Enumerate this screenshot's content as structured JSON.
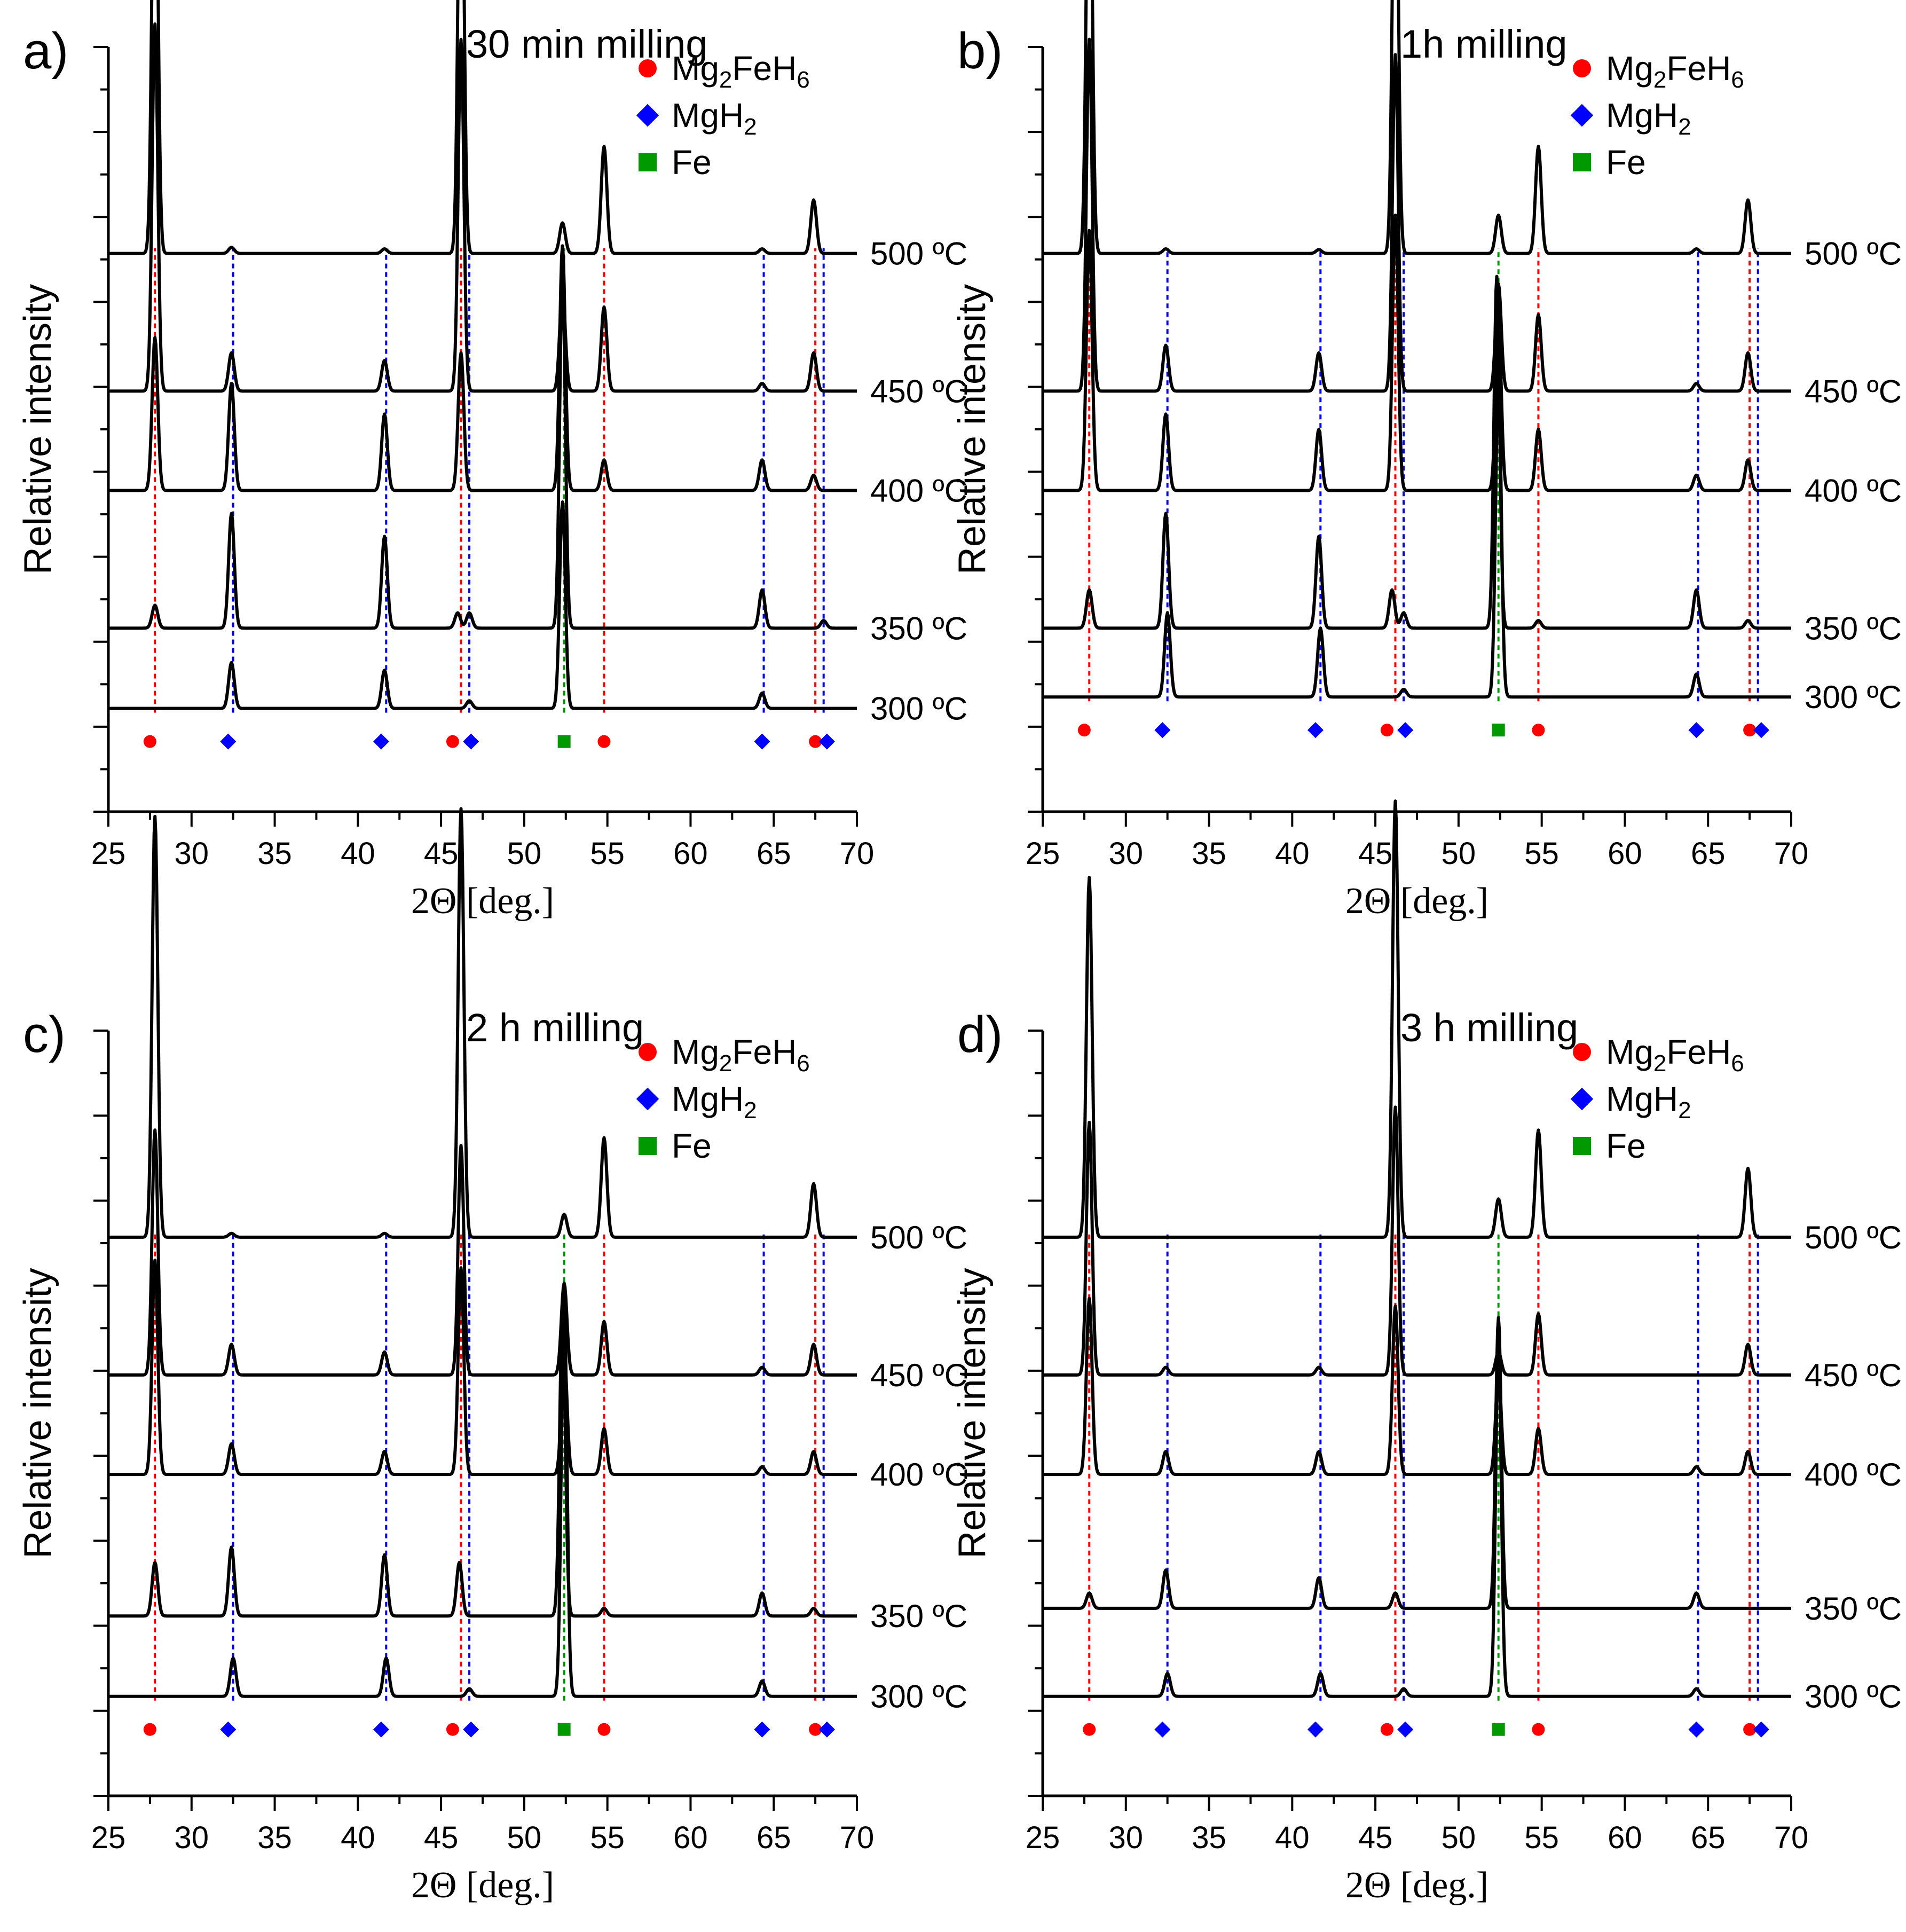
{
  "chart_data": [
    {
      "type": "line",
      "panel_label": "a)",
      "title": "30 min milling",
      "xlabel": "2Θ [deg.]",
      "ylabel": "Relative intensity",
      "xlim": [
        25,
        70
      ],
      "xticks": [
        25,
        30,
        35,
        40,
        45,
        50,
        55,
        60,
        65,
        70
      ],
      "legend": [
        {
          "formula": [
            "Mg",
            "2",
            "FeH",
            "6"
          ],
          "marker": "circle",
          "color": "#ff0000"
        },
        {
          "formula": [
            "MgH",
            "2"
          ],
          "marker": "diamond",
          "color": "#0000ff"
        },
        {
          "formula": [
            "Fe"
          ],
          "marker": "square",
          "color": "#009900"
        }
      ],
      "series": [
        {
          "name": "500 °C",
          "label": "500 ºC",
          "baseline": 0.73,
          "peaks": [
            [
              27.8,
              0.64
            ],
            [
              32.4,
              0.008
            ],
            [
              41.6,
              0.006
            ],
            [
              46.2,
              0.63
            ],
            [
              52.3,
              0.04
            ],
            [
              54.8,
              0.14
            ],
            [
              64.3,
              0.006
            ],
            [
              67.4,
              0.07
            ]
          ]
        },
        {
          "name": "450 °C",
          "label": "450 ºC",
          "baseline": 0.55,
          "peaks": [
            [
              27.8,
              0.48
            ],
            [
              32.4,
              0.05
            ],
            [
              41.6,
              0.04
            ],
            [
              46.2,
              0.46
            ],
            [
              52.3,
              0.13
            ],
            [
              54.8,
              0.11
            ],
            [
              64.3,
              0.01
            ],
            [
              67.4,
              0.05
            ]
          ]
        },
        {
          "name": "400 °C",
          "label": "400 ºC",
          "baseline": 0.42,
          "peaks": [
            [
              27.8,
              0.2
            ],
            [
              32.4,
              0.14
            ],
            [
              41.6,
              0.1
            ],
            [
              46.2,
              0.18
            ],
            [
              52.3,
              0.32
            ],
            [
              54.8,
              0.04
            ],
            [
              64.3,
              0.04
            ],
            [
              67.4,
              0.02
            ]
          ]
        },
        {
          "name": "350 °C",
          "label": "350 ºC",
          "baseline": 0.24,
          "peaks": [
            [
              27.8,
              0.03
            ],
            [
              32.4,
              0.15
            ],
            [
              41.6,
              0.12
            ],
            [
              46.0,
              0.02
            ],
            [
              46.7,
              0.02
            ],
            [
              52.3,
              0.46
            ],
            [
              64.3,
              0.05
            ],
            [
              68.0,
              0.01
            ]
          ]
        },
        {
          "name": "300 °C",
          "label": "300 ºC",
          "baseline": 0.135,
          "peaks": [
            [
              32.4,
              0.06
            ],
            [
              41.6,
              0.05
            ],
            [
              46.7,
              0.01
            ],
            [
              52.3,
              0.27
            ],
            [
              64.3,
              0.02
            ]
          ]
        }
      ],
      "ref_markers": {
        "Mg2FeH6": [
          27.5,
          45.7,
          54.8,
          67.5
        ],
        "MgH2": [
          32.2,
          41.4,
          46.8,
          64.3,
          68.2
        ],
        "Fe": [
          52.4
        ]
      },
      "ref_lines": {
        "Mg2FeH6": [
          27.8,
          46.2,
          54.8,
          67.5
        ],
        "MgH2": [
          32.5,
          41.7,
          46.7,
          64.4,
          68.0
        ],
        "Fe": [
          52.4
        ]
      }
    },
    {
      "type": "line",
      "panel_label": "b)",
      "title": "1h milling",
      "xlabel": "2Θ [deg.]",
      "ylabel": "Relative intensity",
      "xlim": [
        25,
        70
      ],
      "xticks": [
        25,
        30,
        35,
        40,
        45,
        50,
        55,
        60,
        65,
        70
      ],
      "legend": [
        {
          "formula": [
            "Mg",
            "2",
            "FeH",
            "6"
          ],
          "marker": "circle",
          "color": "#ff0000"
        },
        {
          "formula": [
            "MgH",
            "2"
          ],
          "marker": "diamond",
          "color": "#0000ff"
        },
        {
          "formula": [
            "Fe"
          ],
          "marker": "square",
          "color": "#009900"
        }
      ],
      "series": [
        {
          "name": "500 °C",
          "label": "500 ºC",
          "baseline": 0.73,
          "peaks": [
            [
              27.8,
              0.63
            ],
            [
              32.4,
              0.006
            ],
            [
              41.6,
              0.005
            ],
            [
              46.2,
              0.62
            ],
            [
              52.4,
              0.05
            ],
            [
              54.8,
              0.14
            ],
            [
              64.3,
              0.006
            ],
            [
              67.4,
              0.07
            ]
          ]
        },
        {
          "name": "450 °C",
          "label": "450 ºC",
          "baseline": 0.55,
          "peaks": [
            [
              27.8,
              0.46
            ],
            [
              32.4,
              0.06
            ],
            [
              41.6,
              0.05
            ],
            [
              46.2,
              0.44
            ],
            [
              52.4,
              0.14
            ],
            [
              54.8,
              0.1
            ],
            [
              64.3,
              0.01
            ],
            [
              67.4,
              0.05
            ]
          ]
        },
        {
          "name": "400 °C",
          "label": "400 ºC",
          "baseline": 0.42,
          "peaks": [
            [
              27.8,
              0.34
            ],
            [
              32.4,
              0.1
            ],
            [
              41.6,
              0.08
            ],
            [
              46.2,
              0.36
            ],
            [
              52.4,
              0.22
            ],
            [
              54.8,
              0.08
            ],
            [
              64.3,
              0.02
            ],
            [
              67.4,
              0.04
            ]
          ]
        },
        {
          "name": "350 °C",
          "label": "350 ºC",
          "baseline": 0.24,
          "peaks": [
            [
              27.8,
              0.05
            ],
            [
              32.4,
              0.15
            ],
            [
              41.6,
              0.12
            ],
            [
              46.0,
              0.05
            ],
            [
              46.7,
              0.02
            ],
            [
              52.3,
              0.46
            ],
            [
              54.8,
              0.01
            ],
            [
              64.3,
              0.05
            ],
            [
              67.4,
              0.01
            ]
          ]
        },
        {
          "name": "300 °C",
          "label": "300 ºC",
          "baseline": 0.15,
          "peaks": [
            [
              32.5,
              0.11
            ],
            [
              41.7,
              0.09
            ],
            [
              46.7,
              0.01
            ],
            [
              52.4,
              0.42
            ],
            [
              64.3,
              0.03
            ]
          ]
        }
      ],
      "ref_markers": {
        "Mg2FeH6": [
          27.5,
          45.7,
          54.8,
          67.5
        ],
        "MgH2": [
          32.2,
          41.4,
          46.8,
          64.3,
          68.2
        ],
        "Fe": [
          52.4
        ]
      },
      "ref_lines": {
        "Mg2FeH6": [
          27.8,
          46.2,
          54.8,
          67.5
        ],
        "MgH2": [
          32.5,
          41.7,
          46.7,
          64.4,
          68.0
        ],
        "Fe": [
          52.4
        ]
      }
    },
    {
      "type": "line",
      "panel_label": "c)",
      "title": "2 h milling",
      "xlabel": "2Θ [deg.]",
      "ylabel": "Relative intensity",
      "xlim": [
        25,
        70
      ],
      "xticks": [
        25,
        30,
        35,
        40,
        45,
        50,
        55,
        60,
        65,
        70
      ],
      "legend": [
        {
          "formula": [
            "Mg",
            "2",
            "FeH",
            "6"
          ],
          "marker": "circle",
          "color": "#ff0000"
        },
        {
          "formula": [
            "MgH",
            "2"
          ],
          "marker": "diamond",
          "color": "#0000ff"
        },
        {
          "formula": [
            "Fe"
          ],
          "marker": "square",
          "color": "#009900"
        }
      ],
      "series": [
        {
          "name": "500 °C",
          "label": "500 ºC",
          "baseline": 0.73,
          "peaks": [
            [
              27.8,
              0.55
            ],
            [
              32.4,
              0.005
            ],
            [
              41.6,
              0.005
            ],
            [
              46.2,
              0.56
            ],
            [
              52.4,
              0.03
            ],
            [
              54.8,
              0.13
            ],
            [
              67.4,
              0.07
            ]
          ]
        },
        {
          "name": "450 °C",
          "label": "450 ºC",
          "baseline": 0.55,
          "peaks": [
            [
              27.8,
              0.32
            ],
            [
              32.4,
              0.04
            ],
            [
              41.6,
              0.03
            ],
            [
              46.2,
              0.3
            ],
            [
              52.4,
              0.12
            ],
            [
              54.8,
              0.07
            ],
            [
              64.3,
              0.01
            ],
            [
              67.4,
              0.04
            ]
          ]
        },
        {
          "name": "400 °C",
          "label": "400 ºC",
          "baseline": 0.42,
          "peaks": [
            [
              27.8,
              0.28
            ],
            [
              32.4,
              0.04
            ],
            [
              41.6,
              0.03
            ],
            [
              46.2,
              0.27
            ],
            [
              52.4,
              0.16
            ],
            [
              54.8,
              0.06
            ],
            [
              64.3,
              0.01
            ],
            [
              67.4,
              0.03
            ]
          ]
        },
        {
          "name": "350 °C",
          "label": "350 ºC",
          "baseline": 0.235,
          "peaks": [
            [
              27.8,
              0.07
            ],
            [
              32.4,
              0.09
            ],
            [
              41.6,
              0.08
            ],
            [
              46.1,
              0.07
            ],
            [
              52.3,
              0.4
            ],
            [
              54.8,
              0.01
            ],
            [
              64.3,
              0.03
            ],
            [
              67.4,
              0.01
            ]
          ]
        },
        {
          "name": "300 °C",
          "label": "300 ºC",
          "baseline": 0.13,
          "peaks": [
            [
              32.5,
              0.05
            ],
            [
              41.7,
              0.05
            ],
            [
              46.7,
              0.01
            ],
            [
              52.4,
              0.52
            ],
            [
              64.3,
              0.02
            ]
          ]
        }
      ],
      "ref_markers": {
        "Mg2FeH6": [
          27.5,
          45.7,
          54.8,
          67.5
        ],
        "MgH2": [
          32.2,
          41.4,
          46.8,
          64.3,
          68.2
        ],
        "Fe": [
          52.4
        ]
      },
      "ref_lines": {
        "Mg2FeH6": [
          27.8,
          46.2,
          54.8,
          67.5
        ],
        "MgH2": [
          32.5,
          41.7,
          46.7,
          64.4,
          68.0
        ],
        "Fe": [
          52.4
        ]
      }
    },
    {
      "type": "line",
      "panel_label": "d)",
      "title": "3 h milling",
      "xlabel": "2Θ [deg.]",
      "ylabel": "Relative intensity",
      "xlim": [
        25,
        70
      ],
      "xticks": [
        25,
        30,
        35,
        40,
        45,
        50,
        55,
        60,
        65,
        70
      ],
      "legend": [
        {
          "formula": [
            "Mg",
            "2",
            "FeH",
            "6"
          ],
          "marker": "circle",
          "color": "#ff0000"
        },
        {
          "formula": [
            "MgH",
            "2"
          ],
          "marker": "diamond",
          "color": "#0000ff"
        },
        {
          "formula": [
            "Fe"
          ],
          "marker": "square",
          "color": "#009900"
        }
      ],
      "series": [
        {
          "name": "500 °C",
          "label": "500 ºC",
          "baseline": 0.73,
          "peaks": [
            [
              27.8,
              0.47
            ],
            [
              46.2,
              0.57
            ],
            [
              52.4,
              0.05
            ],
            [
              54.8,
              0.14
            ],
            [
              67.4,
              0.09
            ]
          ]
        },
        {
          "name": "450 °C",
          "label": "450 ºC",
          "baseline": 0.55,
          "peaks": [
            [
              27.8,
              0.33
            ],
            [
              32.4,
              0.01
            ],
            [
              41.6,
              0.01
            ],
            [
              46.2,
              0.35
            ],
            [
              52.4,
              0.03
            ],
            [
              54.8,
              0.08
            ],
            [
              67.4,
              0.04
            ]
          ]
        },
        {
          "name": "400 °C",
          "label": "400 ºC",
          "baseline": 0.42,
          "peaks": [
            [
              27.8,
              0.23
            ],
            [
              32.4,
              0.03
            ],
            [
              41.6,
              0.03
            ],
            [
              46.2,
              0.22
            ],
            [
              52.4,
              0.13
            ],
            [
              54.8,
              0.06
            ],
            [
              64.3,
              0.01
            ],
            [
              67.4,
              0.03
            ]
          ]
        },
        {
          "name": "350 °C",
          "label": "350 ºC",
          "baseline": 0.245,
          "peaks": [
            [
              27.8,
              0.02
            ],
            [
              32.4,
              0.05
            ],
            [
              41.6,
              0.04
            ],
            [
              46.2,
              0.02
            ],
            [
              52.4,
              0.38
            ],
            [
              64.3,
              0.02
            ]
          ]
        },
        {
          "name": "300 °C",
          "label": "300 ºC",
          "baseline": 0.13,
          "peaks": [
            [
              32.5,
              0.03
            ],
            [
              41.7,
              0.03
            ],
            [
              46.7,
              0.01
            ],
            [
              52.4,
              0.46
            ],
            [
              64.3,
              0.01
            ]
          ]
        }
      ],
      "ref_markers": {
        "Mg2FeH6": [
          27.8,
          45.7,
          54.8,
          67.5
        ],
        "MgH2": [
          32.2,
          41.4,
          46.8,
          64.3,
          68.2
        ],
        "Fe": [
          52.4
        ]
      },
      "ref_lines": {
        "Mg2FeH6": [
          27.8,
          46.2,
          54.8,
          67.5
        ],
        "MgH2": [
          32.5,
          41.7,
          46.7,
          64.4,
          68.0
        ],
        "Fe": [
          52.4
        ]
      }
    }
  ]
}
